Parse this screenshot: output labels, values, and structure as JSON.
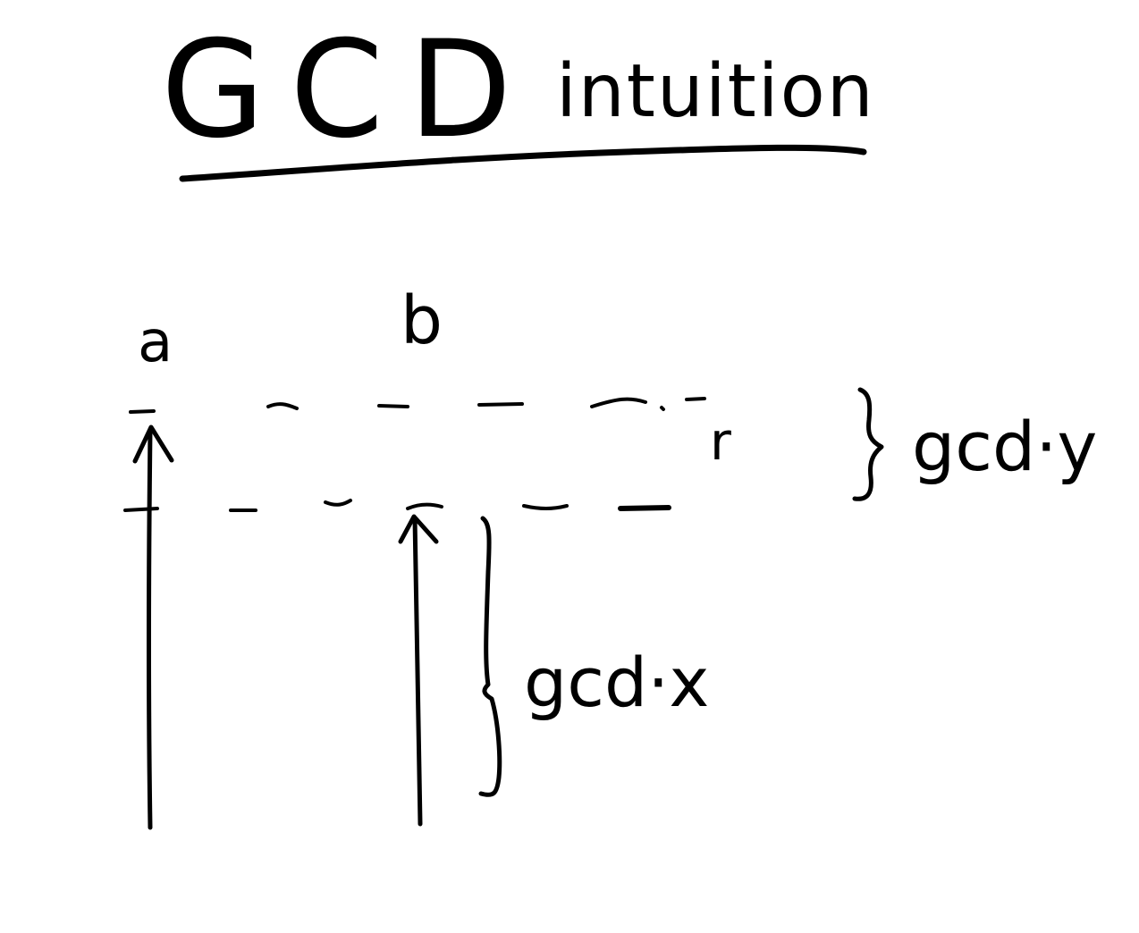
{
  "title": {
    "main": "GCD",
    "sub": "intuition"
  },
  "labels": {
    "a": "a",
    "b": "b",
    "r": "r",
    "gcd_y": "gcd·y",
    "gcd_x": "gcd·x"
  }
}
